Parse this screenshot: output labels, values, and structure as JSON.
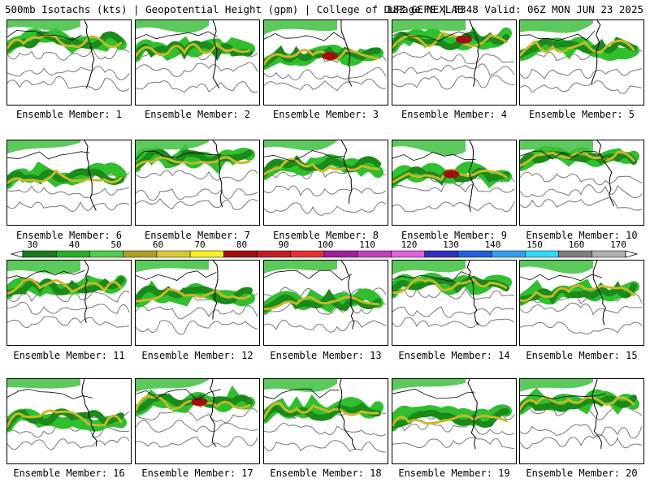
{
  "header": {
    "left": "500mb Isotachs (kts) | Geopotential Height (gpm) | College of DuPage NEXLAB",
    "right": "18Z GEFS | F348 Valid: 06Z MON JUN 23 2025"
  },
  "panels": [
    {
      "label": "Ensemble Member: 1"
    },
    {
      "label": "Ensemble Member: 2"
    },
    {
      "label": "Ensemble Member: 3"
    },
    {
      "label": "Ensemble Member: 4"
    },
    {
      "label": "Ensemble Member: 5"
    },
    {
      "label": "Ensemble Member: 6"
    },
    {
      "label": "Ensemble Member: 7"
    },
    {
      "label": "Ensemble Member: 8"
    },
    {
      "label": "Ensemble Member: 9"
    },
    {
      "label": "Ensemble Member: 10"
    },
    {
      "label": "Ensemble Member: 11"
    },
    {
      "label": "Ensemble Member: 12"
    },
    {
      "label": "Ensemble Member: 13"
    },
    {
      "label": "Ensemble Member: 14"
    },
    {
      "label": "Ensemble Member: 15"
    },
    {
      "label": "Ensemble Member: 16"
    },
    {
      "label": "Ensemble Member: 17"
    },
    {
      "label": "Ensemble Member: 18"
    },
    {
      "label": "Ensemble Member: 19"
    },
    {
      "label": "Ensemble Member: 20"
    }
  ],
  "colorbar": {
    "ticks": [
      "30",
      "40",
      "50",
      "60",
      "70",
      "80",
      "90",
      "100",
      "110",
      "120",
      "130",
      "140",
      "150",
      "160",
      "170"
    ],
    "colors": [
      "#1a7a1a",
      "#25b025",
      "#4ad04a",
      "#b0a020",
      "#d8c838",
      "#f8f020",
      "#a01010",
      "#c02020",
      "#e83030",
      "#a020a0",
      "#c040c0",
      "#e060e0",
      "#3030c0",
      "#2060e0",
      "#30a0f0",
      "#30d8f8",
      "#808080",
      "#b0b0b0"
    ],
    "units": "kts"
  }
}
